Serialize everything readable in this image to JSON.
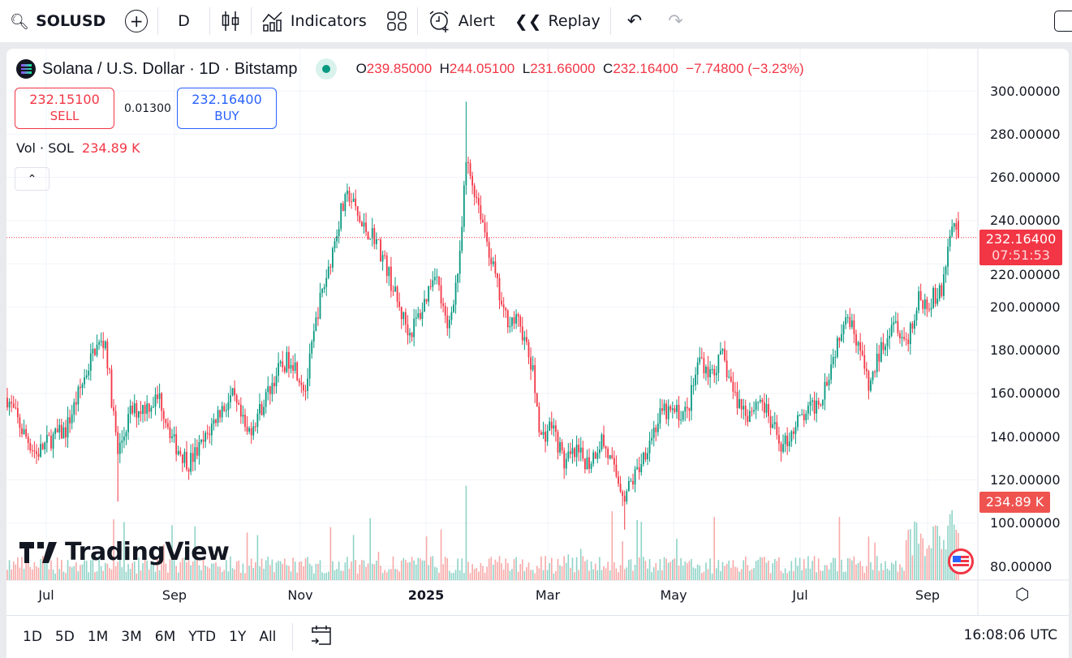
{
  "toolbar": {
    "symbol": "SOLUSD",
    "interval": "D",
    "indicators": "Indicators",
    "alert": "Alert",
    "replay": "Replay"
  },
  "legend": {
    "title": "Solana / U.S. Dollar · 1D · Bitstamp",
    "o_label": "O",
    "o": "239.85000",
    "h_label": "H",
    "h": "244.05100",
    "l_label": "L",
    "l": "231.66000",
    "c_label": "C",
    "c": "232.16400",
    "change": "−7.74800 (−3.23%)"
  },
  "trade": {
    "sell_price": "232.15100",
    "sell_label": "SELL",
    "spread": "0.01300",
    "buy_price": "232.16400",
    "buy_label": "BUY"
  },
  "volume": {
    "label": "Vol · SOL",
    "value": "234.89 K"
  },
  "price_axis": {
    "labels": [
      "300.00000",
      "280.00000",
      "260.00000",
      "240.00000",
      "220.00000",
      "200.00000",
      "180.00000",
      "160.00000",
      "140.00000",
      "120.00000",
      "100.00000",
      "80.00000"
    ],
    "current_price": "232.16400",
    "countdown": "07:51:53",
    "volume_label": "234.89 K"
  },
  "time_axis": [
    "Jul",
    "Sep",
    "Nov",
    "2025",
    "Mar",
    "May",
    "Jul",
    "Sep"
  ],
  "brand": "TradingView",
  "bottom": {
    "ranges": [
      "1D",
      "5D",
      "1M",
      "3M",
      "6M",
      "YTD",
      "1Y",
      "All"
    ],
    "clock": "16:08:06 UTC"
  },
  "colors": {
    "up": "#089981",
    "down": "#f23645",
    "vol_up": "#8fd3c7",
    "vol_down": "#f7a9a7"
  },
  "chart_data": {
    "type": "candlestick",
    "title": "Solana / U.S. Dollar · 1D · Bitstamp",
    "ylim": [
      80,
      300
    ],
    "points": [
      [
        0,
        158
      ],
      [
        7,
        143
      ],
      [
        14,
        132
      ],
      [
        21,
        139
      ],
      [
        28,
        143
      ],
      [
        35,
        162
      ],
      [
        42,
        181
      ],
      [
        47,
        184
      ],
      [
        53,
        132
      ],
      [
        59,
        151
      ],
      [
        66,
        154
      ],
      [
        73,
        158
      ],
      [
        80,
        137
      ],
      [
        87,
        128
      ],
      [
        94,
        137
      ],
      [
        101,
        151
      ],
      [
        108,
        158
      ],
      [
        115,
        141
      ],
      [
        122,
        154
      ],
      [
        129,
        169
      ],
      [
        136,
        177
      ],
      [
        143,
        162
      ],
      [
        149,
        199
      ],
      [
        154,
        218
      ],
      [
        160,
        244
      ],
      [
        164,
        252
      ],
      [
        170,
        237
      ],
      [
        176,
        233
      ],
      [
        182,
        218
      ],
      [
        188,
        199
      ],
      [
        193,
        188
      ],
      [
        199,
        199
      ],
      [
        205,
        218
      ],
      [
        211,
        188
      ],
      [
        217,
        222
      ],
      [
        220,
        267
      ],
      [
        226,
        248
      ],
      [
        232,
        222
      ],
      [
        238,
        196
      ],
      [
        246,
        192
      ],
      [
        252,
        169
      ],
      [
        256,
        139
      ],
      [
        261,
        146
      ],
      [
        267,
        128
      ],
      [
        273,
        132
      ],
      [
        279,
        128
      ],
      [
        285,
        139
      ],
      [
        291,
        124
      ],
      [
        296,
        113
      ],
      [
        302,
        124
      ],
      [
        308,
        139
      ],
      [
        314,
        151
      ],
      [
        320,
        151
      ],
      [
        326,
        151
      ],
      [
        332,
        177
      ],
      [
        337,
        169
      ],
      [
        343,
        177
      ],
      [
        349,
        158
      ],
      [
        355,
        151
      ],
      [
        361,
        158
      ],
      [
        366,
        146
      ],
      [
        372,
        135
      ],
      [
        378,
        146
      ],
      [
        384,
        151
      ],
      [
        390,
        158
      ],
      [
        396,
        177
      ],
      [
        402,
        199
      ],
      [
        408,
        184
      ],
      [
        413,
        162
      ],
      [
        419,
        181
      ],
      [
        425,
        196
      ],
      [
        431,
        184
      ],
      [
        437,
        203
      ],
      [
        442,
        203
      ],
      [
        448,
        207
      ],
      [
        452,
        233
      ],
      [
        455,
        240
      ],
      [
        456,
        232.164
      ]
    ],
    "extremes": [
      {
        "day": 53,
        "low": 110
      },
      {
        "day": 220,
        "high": 295
      },
      {
        "day": 296,
        "low": 97
      }
    ]
  }
}
